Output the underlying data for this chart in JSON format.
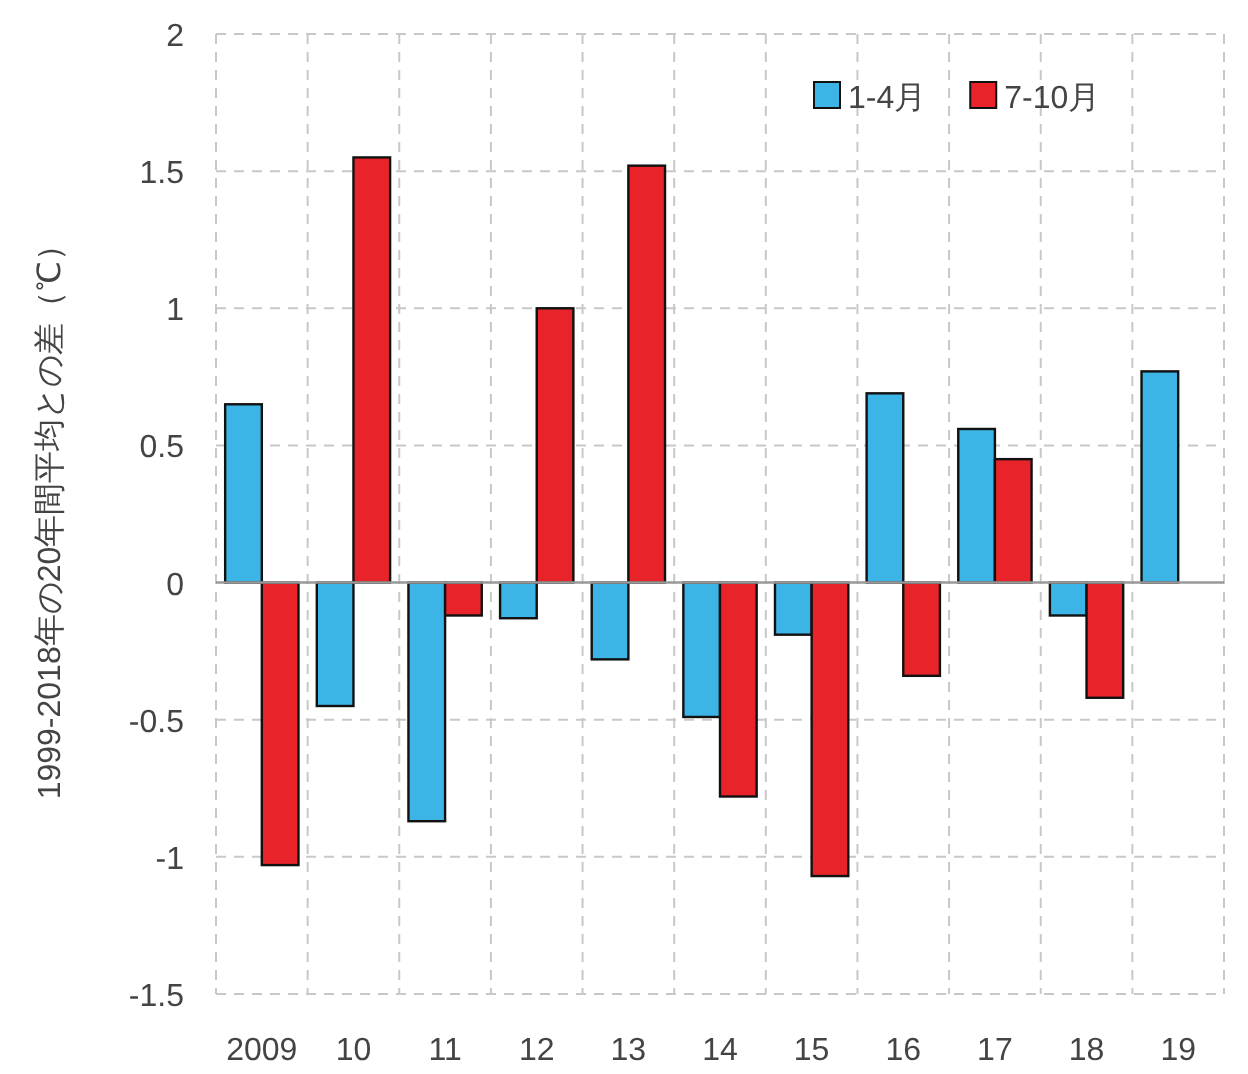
{
  "chart_data": {
    "type": "bar",
    "ylabel": "1999-2018年の20年間平均との差（℃）",
    "categories": [
      "2009",
      "10",
      "11",
      "12",
      "13",
      "14",
      "15",
      "16",
      "17",
      "18",
      "19"
    ],
    "series": [
      {
        "name": "1-4月",
        "color": "#3cb4e5",
        "values": [
          0.65,
          -0.45,
          -0.87,
          -0.13,
          -0.28,
          -0.49,
          -0.19,
          0.69,
          0.56,
          -0.12,
          0.77
        ]
      },
      {
        "name": "7-10月",
        "color": "#e8242a",
        "values": [
          -1.03,
          1.55,
          -0.12,
          1.0,
          1.52,
          -0.78,
          -1.07,
          -0.34,
          0.45,
          -0.42,
          null
        ]
      }
    ],
    "ylim": [
      -1.5,
      2
    ],
    "yticks": [
      -1.5,
      -1,
      -0.5,
      0,
      0.5,
      1,
      1.5,
      2
    ],
    "grid": true,
    "legend": "top right"
  }
}
